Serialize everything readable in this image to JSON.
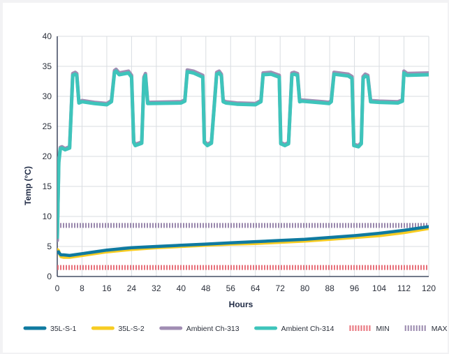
{
  "chart_data": {
    "type": "line",
    "title": "",
    "xlabel": "Hours",
    "ylabel": "Temp (°C)",
    "xlim": [
      0,
      120
    ],
    "ylim": [
      0,
      40
    ],
    "xticks": [
      0,
      8,
      16,
      24,
      32,
      40,
      48,
      56,
      64,
      72,
      80,
      88,
      96,
      104,
      112,
      120
    ],
    "yticks": [
      0,
      5,
      10,
      15,
      20,
      25,
      30,
      35,
      40
    ],
    "grid": true,
    "legend_position": "bottom",
    "series": [
      {
        "name": "35L-S-1",
        "color": "#0f7aa0",
        "style": "solid",
        "x": [
          0,
          0.4,
          0.8,
          1.2,
          2,
          4,
          8,
          16,
          24,
          32,
          40,
          48,
          56,
          64,
          72,
          80,
          88,
          96,
          104,
          112,
          120
        ],
        "y": [
          4.0,
          4.1,
          3.8,
          3.6,
          3.6,
          3.5,
          3.8,
          4.4,
          4.8,
          5.0,
          5.2,
          5.4,
          5.6,
          5.8,
          6.0,
          6.2,
          6.5,
          6.8,
          7.2,
          7.7,
          8.3
        ]
      },
      {
        "name": "35L-S-2",
        "color": "#f7cc22",
        "style": "solid",
        "x": [
          0,
          0.4,
          0.8,
          1.2,
          2,
          4,
          8,
          16,
          24,
          32,
          40,
          48,
          56,
          64,
          72,
          80,
          88,
          96,
          104,
          112,
          120
        ],
        "y": [
          4.5,
          4.3,
          3.7,
          3.3,
          3.2,
          3.2,
          3.5,
          4.1,
          4.5,
          4.8,
          5.0,
          5.2,
          5.4,
          5.5,
          5.7,
          5.9,
          6.2,
          6.5,
          6.8,
          7.3,
          8.0
        ]
      },
      {
        "name": "Ambient Ch-313",
        "color": "#a08db3",
        "style": "solid",
        "x": [
          0,
          0.5,
          1.0,
          1.5,
          2.5,
          4,
          5,
          5.8,
          6.3,
          7,
          8,
          12,
          16,
          17.5,
          18.5,
          19,
          20,
          23,
          24,
          24.7,
          25.2,
          27.3,
          28,
          28.5,
          29.2,
          40,
          41.2,
          42,
          44,
          47,
          47.5,
          48.5,
          49.8,
          51.5,
          52.3,
          53,
          53.6,
          54.5,
          58,
          64,
          65.8,
          66.5,
          69,
          71.7,
          72.2,
          73.5,
          74.7,
          75.8,
          76.5,
          77.6,
          78.3,
          79,
          86,
          87.8,
          88.5,
          89.4,
          94,
          95.2,
          95.8,
          97.3,
          98.2,
          98.8,
          99.5,
          100.3,
          101.2,
          104,
          110,
          111.5,
          112,
          113,
          120
        ],
        "y": [
          6.0,
          19.5,
          21.5,
          21.6,
          21.3,
          21.6,
          33.8,
          34.0,
          33.8,
          29.0,
          29.3,
          29.0,
          28.8,
          29.3,
          34.3,
          34.5,
          33.9,
          34.2,
          33.5,
          22.5,
          22.0,
          22.4,
          33.2,
          33.8,
          29.0,
          29.1,
          29.4,
          34.4,
          34.2,
          33.5,
          22.5,
          22.0,
          22.4,
          34.0,
          34.2,
          33.7,
          29.3,
          29.1,
          28.9,
          28.8,
          29.3,
          33.9,
          34.0,
          33.5,
          22.3,
          22.0,
          22.3,
          33.9,
          34.0,
          33.8,
          29.3,
          29.4,
          29.1,
          29.0,
          29.3,
          34.0,
          33.7,
          33.3,
          22.0,
          21.8,
          22.3,
          33.3,
          33.7,
          33.5,
          29.3,
          29.2,
          29.1,
          29.4,
          34.2,
          33.8,
          33.9
        ]
      },
      {
        "name": "Ambient Ch-314",
        "color": "#3ec4bb",
        "style": "solid",
        "x": [
          0,
          0.5,
          1.0,
          1.5,
          2.5,
          4,
          5,
          5.8,
          6.3,
          7,
          8,
          12,
          16,
          17.5,
          18.5,
          19,
          20,
          23,
          24,
          24.7,
          25.2,
          27.3,
          28,
          28.5,
          29.2,
          40,
          41.2,
          42,
          44,
          47,
          47.5,
          48.5,
          49.8,
          51.5,
          52.3,
          53,
          53.6,
          54.5,
          58,
          64,
          65.8,
          66.5,
          69,
          71.7,
          72.2,
          73.5,
          74.7,
          75.8,
          76.5,
          77.6,
          78.3,
          79,
          86,
          87.8,
          88.5,
          89.4,
          94,
          95.2,
          95.8,
          97.3,
          98.2,
          98.8,
          99.5,
          100.3,
          101.2,
          104,
          110,
          111.5,
          112,
          113,
          120
        ],
        "y": [
          6.5,
          19.0,
          21.3,
          21.4,
          21.1,
          21.4,
          33.5,
          33.7,
          33.5,
          28.9,
          29.1,
          28.8,
          28.6,
          29.1,
          34.0,
          34.2,
          33.6,
          33.9,
          33.2,
          22.3,
          21.8,
          22.2,
          32.9,
          33.5,
          28.8,
          28.9,
          29.2,
          34.1,
          33.9,
          33.2,
          22.3,
          21.8,
          22.2,
          33.7,
          33.9,
          33.4,
          29.1,
          28.9,
          28.7,
          28.6,
          29.1,
          33.6,
          33.7,
          33.2,
          22.1,
          21.8,
          22.1,
          33.6,
          33.7,
          33.5,
          29.1,
          29.2,
          28.9,
          28.8,
          29.1,
          33.7,
          33.4,
          33.0,
          21.8,
          21.6,
          22.1,
          33.0,
          33.4,
          33.2,
          29.1,
          29.0,
          28.9,
          29.2,
          33.9,
          33.5,
          33.6
        ]
      },
      {
        "name": "MIN",
        "color": "#e8707a",
        "style": "hatched",
        "x": [
          0,
          120
        ],
        "y": [
          1.5,
          1.5
        ]
      },
      {
        "name": "MAX",
        "color": "#9a88ad",
        "style": "hatched",
        "x": [
          0,
          120
        ],
        "y": [
          8.5,
          8.5
        ]
      }
    ]
  }
}
